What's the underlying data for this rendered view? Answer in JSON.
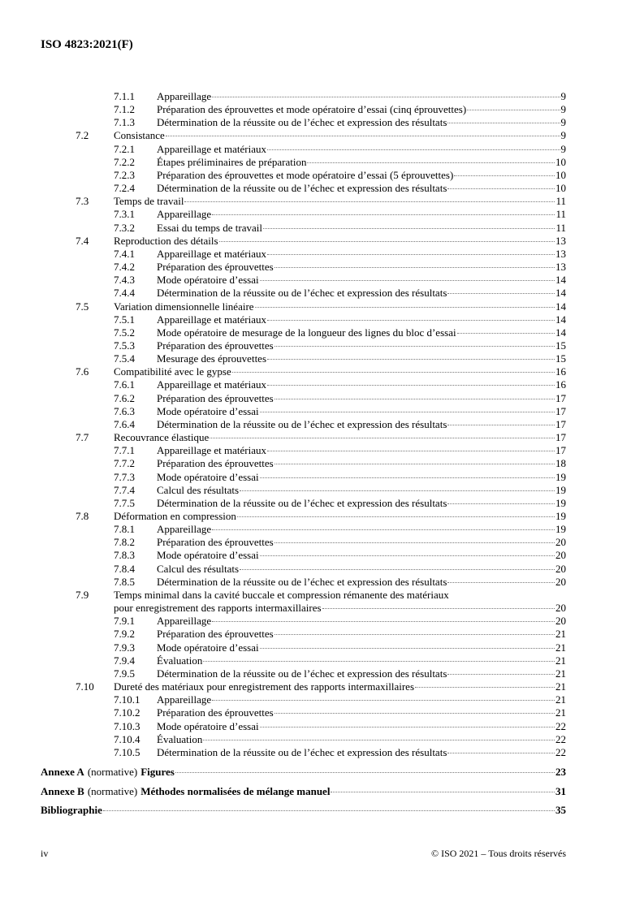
{
  "header": {
    "title": "ISO 4823:2021(F)"
  },
  "toc": [
    {
      "level": 3,
      "num": "7.1.1",
      "title": "Appareillage",
      "page": "9"
    },
    {
      "level": 3,
      "num": "7.1.2",
      "title": "Préparation des éprouvettes et mode opératoire d’essai (cinq éprouvettes)",
      "page": "9"
    },
    {
      "level": 3,
      "num": "7.1.3",
      "title": "Détermination de la réussite ou de l’échec et expression des résultats",
      "page": "9"
    },
    {
      "level": 2,
      "num": "7.2",
      "title": "Consistance",
      "page": "9"
    },
    {
      "level": 3,
      "num": "7.2.1",
      "title": "Appareillage et matériaux",
      "page": "9"
    },
    {
      "level": 3,
      "num": "7.2.2",
      "title": "Étapes préliminaires de préparation",
      "page": "10"
    },
    {
      "level": 3,
      "num": "7.2.3",
      "title": "Préparation des éprouvettes et mode opératoire d’essai (5 éprouvettes)",
      "page": "10"
    },
    {
      "level": 3,
      "num": "7.2.4",
      "title": "Détermination de la réussite ou de l’échec et expression des résultats",
      "page": "10"
    },
    {
      "level": 2,
      "num": "7.3",
      "title": "Temps de travail",
      "page": "11"
    },
    {
      "level": 3,
      "num": "7.3.1",
      "title": "Appareillage",
      "page": "11"
    },
    {
      "level": 3,
      "num": "7.3.2",
      "title": "Essai du temps de travail",
      "page": "11"
    },
    {
      "level": 2,
      "num": "7.4",
      "title": "Reproduction des détails",
      "page": "13"
    },
    {
      "level": 3,
      "num": "7.4.1",
      "title": "Appareillage et matériaux",
      "page": "13"
    },
    {
      "level": 3,
      "num": "7.4.2",
      "title": "Préparation des éprouvettes",
      "page": "13"
    },
    {
      "level": 3,
      "num": "7.4.3",
      "title": "Mode opératoire d’essai",
      "page": "14"
    },
    {
      "level": 3,
      "num": "7.4.4",
      "title": "Détermination de la réussite ou de l’échec et expression des résultats",
      "page": "14"
    },
    {
      "level": 2,
      "num": "7.5",
      "title": "Variation dimensionnelle linéaire",
      "page": "14"
    },
    {
      "level": 3,
      "num": "7.5.1",
      "title": "Appareillage et matériaux",
      "page": "14"
    },
    {
      "level": 3,
      "num": "7.5.2",
      "title": "Mode opératoire de mesurage de la longueur des lignes du bloc d’essai",
      "page": "14"
    },
    {
      "level": 3,
      "num": "7.5.3",
      "title": "Préparation des éprouvettes",
      "page": "15"
    },
    {
      "level": 3,
      "num": "7.5.4",
      "title": "Mesurage des éprouvettes",
      "page": "15"
    },
    {
      "level": 2,
      "num": "7.6",
      "title": "Compatibilité avec le gypse",
      "page": "16"
    },
    {
      "level": 3,
      "num": "7.6.1",
      "title": "Appareillage et matériaux",
      "page": "16"
    },
    {
      "level": 3,
      "num": "7.6.2",
      "title": "Préparation des éprouvettes",
      "page": "17"
    },
    {
      "level": 3,
      "num": "7.6.3",
      "title": "Mode opératoire d’essai",
      "page": "17"
    },
    {
      "level": 3,
      "num": "7.6.4",
      "title": "Détermination de la réussite ou de l’échec et expression des résultats",
      "page": "17"
    },
    {
      "level": 2,
      "num": "7.7",
      "title": "Recouvrance élastique",
      "page": "17"
    },
    {
      "level": 3,
      "num": "7.7.1",
      "title": "Appareillage et matériaux",
      "page": "17"
    },
    {
      "level": 3,
      "num": "7.7.2",
      "title": "Préparation des éprouvettes",
      "page": "18"
    },
    {
      "level": 3,
      "num": "7.7.3",
      "title": "Mode opératoire d’essai",
      "page": "19"
    },
    {
      "level": 3,
      "num": "7.7.4",
      "title": "Calcul des résultats",
      "page": "19"
    },
    {
      "level": 3,
      "num": "7.7.5",
      "title": "Détermination de la réussite ou de l’échec et expression des résultats",
      "page": "19"
    },
    {
      "level": 2,
      "num": "7.8",
      "title": "Déformation en compression",
      "page": "19"
    },
    {
      "level": 3,
      "num": "7.8.1",
      "title": "Appareillage",
      "page": "19"
    },
    {
      "level": 3,
      "num": "7.8.2",
      "title": "Préparation des éprouvettes",
      "page": "20"
    },
    {
      "level": 3,
      "num": "7.8.3",
      "title": "Mode opératoire d’essai",
      "page": "20"
    },
    {
      "level": 3,
      "num": "7.8.4",
      "title": "Calcul des résultats",
      "page": "20"
    },
    {
      "level": 3,
      "num": "7.8.5",
      "title": "Détermination de la réussite ou de l’échec et expression des résultats",
      "page": "20"
    },
    {
      "level": 2,
      "num": "7.9",
      "title": "Temps minimal dans la cavité buccale et compression rémanente des matériaux",
      "title2": "pour enregistrement des rapports intermaxillaires",
      "page": "20"
    },
    {
      "level": 3,
      "num": "7.9.1",
      "title": "Appareillage",
      "page": "20"
    },
    {
      "level": 3,
      "num": "7.9.2",
      "title": "Préparation des éprouvettes",
      "page": "21"
    },
    {
      "level": 3,
      "num": "7.9.3",
      "title": "Mode opératoire d’essai",
      "page": "21"
    },
    {
      "level": 3,
      "num": "7.9.4",
      "title": "Évaluation",
      "page": "21"
    },
    {
      "level": 3,
      "num": "7.9.5",
      "title": "Détermination de la réussite ou de l’échec et expression des résultats",
      "page": "21"
    },
    {
      "level": 2,
      "num": "7.10",
      "title": "Dureté des matériaux pour enregistrement des rapports intermaxillaires",
      "page": "21"
    },
    {
      "level": 3,
      "num": "7.10.1",
      "title": "Appareillage",
      "page": "21"
    },
    {
      "level": 3,
      "num": "7.10.2",
      "title": "Préparation des éprouvettes",
      "page": "21"
    },
    {
      "level": 3,
      "num": "7.10.3",
      "title": "Mode opératoire d’essai",
      "page": "22"
    },
    {
      "level": 3,
      "num": "7.10.4",
      "title": "Évaluation",
      "page": "22"
    },
    {
      "level": 3,
      "num": "7.10.5",
      "title": "Détermination de la réussite ou de l’échec et expression des résultats",
      "page": "22"
    }
  ],
  "annexes": [
    {
      "label": "Annexe A",
      "type": "(normative)",
      "title": "Figures",
      "page": "23"
    },
    {
      "label": "Annexe B",
      "type": "(normative)",
      "title": "Méthodes normalisées de mélange manuel",
      "page": "31"
    },
    {
      "label": "Bibliographie",
      "type": "",
      "title": "",
      "page": "35"
    }
  ],
  "footer": {
    "page": "iv",
    "copyright": "© ISO 2021 – Tous droits réservés"
  }
}
